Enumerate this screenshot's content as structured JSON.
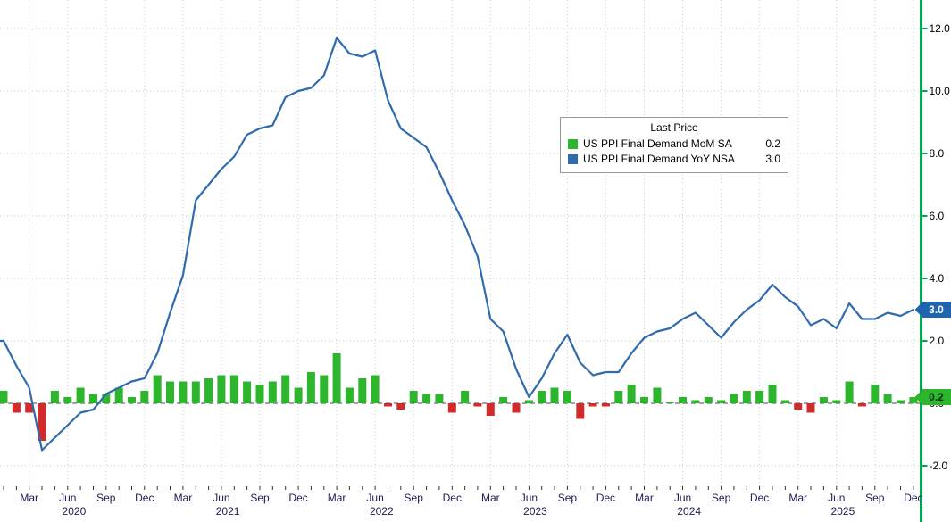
{
  "legend": {
    "title": "Last Price",
    "items": [
      {
        "label": "US PPI Final Demand MoM SA",
        "value": "0.2",
        "color": "#2db52d"
      },
      {
        "label": "US PPI Final Demand YoY NSA",
        "value": "3.0",
        "color": "#2f6bad"
      }
    ]
  },
  "axes": {
    "y_ticks": [
      "12.0",
      "10.0",
      "8.0",
      "6.0",
      "4.0",
      "2.0",
      "0.0",
      "-2.0"
    ],
    "quarter_labels": [
      "Mar",
      "Jun",
      "Sep",
      "Dec"
    ],
    "years": [
      "2020",
      "2021",
      "2022",
      "2023",
      "2024",
      "2025"
    ]
  },
  "badges": [
    {
      "name": "yoy-last-price-badge",
      "value": "3.0",
      "value_num": 3.0,
      "color": "#1f64ad",
      "text_color": "#ffffff"
    },
    {
      "name": "mom-last-price-badge",
      "value": "0.2",
      "value_num": 0.2,
      "color": "#2db52d",
      "text_color": "#062c06"
    }
  ],
  "colors": {
    "axis_green": "#00a550",
    "bar_pos": "#2db52d",
    "bar_neg": "#d22b2b",
    "line_blue": "#2f6bad",
    "grid": "#c9c9c9"
  },
  "chart_data": {
    "type": "bar+line",
    "x_unit": "month",
    "x_range": [
      "2020-01",
      "2025-12"
    ],
    "ylim": [
      -2.7,
      12.9
    ],
    "gridlines": [
      -2,
      0,
      2,
      4,
      6,
      8,
      10,
      12
    ],
    "grid": "dotted",
    "legend_position": "upper-middle",
    "series": [
      {
        "name": "US PPI Final Demand MoM SA",
        "type": "bar",
        "last": 0.2,
        "values": [
          0.4,
          -0.3,
          -0.3,
          -1.2,
          0.4,
          0.2,
          0.5,
          0.3,
          0.3,
          0.5,
          0.2,
          0.4,
          0.9,
          0.7,
          0.7,
          0.7,
          0.8,
          0.9,
          0.9,
          0.7,
          0.6,
          0.7,
          0.9,
          0.5,
          1.0,
          0.9,
          1.6,
          0.5,
          0.8,
          0.9,
          -0.1,
          -0.2,
          0.4,
          0.3,
          0.3,
          -0.3,
          0.4,
          -0.1,
          -0.4,
          0.2,
          -0.3,
          0.1,
          0.4,
          0.5,
          0.4,
          -0.5,
          -0.1,
          -0.1,
          0.4,
          0.6,
          0.2,
          0.5,
          0.0,
          0.2,
          0.1,
          0.2,
          0.1,
          0.3,
          0.4,
          0.4,
          0.6,
          0.1,
          -0.2,
          -0.3,
          0.2,
          0.1,
          0.7,
          -0.1,
          0.6,
          0.3,
          0.1,
          0.2
        ]
      },
      {
        "name": "US PPI Final Demand YoY NSA",
        "type": "line",
        "last": 3.0,
        "values": [
          2.0,
          1.2,
          0.5,
          -1.5,
          -1.1,
          -0.7,
          -0.3,
          -0.2,
          0.3,
          0.5,
          0.7,
          0.8,
          1.6,
          2.9,
          4.1,
          6.5,
          7.0,
          7.5,
          7.9,
          8.6,
          8.8,
          8.9,
          9.8,
          10.0,
          10.1,
          10.5,
          11.7,
          11.2,
          11.1,
          11.3,
          9.7,
          8.8,
          8.5,
          8.2,
          7.4,
          6.5,
          5.7,
          4.7,
          2.7,
          2.3,
          1.1,
          0.2,
          0.8,
          1.6,
          2.2,
          1.3,
          0.9,
          1.0,
          1.0,
          1.6,
          2.1,
          2.3,
          2.4,
          2.7,
          2.9,
          2.5,
          2.1,
          2.6,
          3.0,
          3.3,
          3.8,
          3.4,
          3.1,
          2.5,
          2.7,
          2.4,
          3.2,
          2.7,
          2.7,
          2.9,
          2.8,
          3.0
        ]
      }
    ]
  }
}
